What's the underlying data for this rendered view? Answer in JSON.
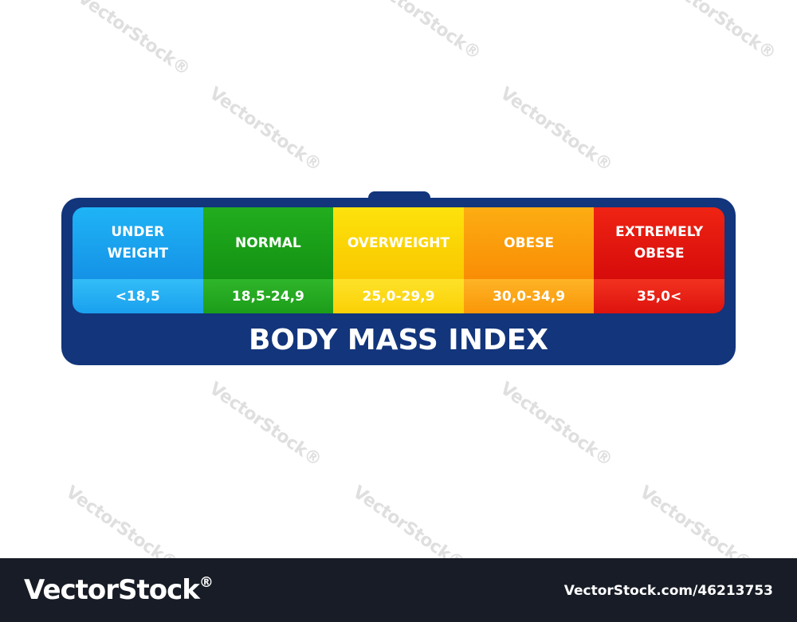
{
  "watermark": "VectorStock®",
  "colors": {
    "frame": "#12357c",
    "footer": "#171c26",
    "underweight": "#1ea6f0",
    "normal": "#1aa31a",
    "overweight": "#fbd305",
    "obese": "#fb9a08",
    "extremely_obese": "#e3150f"
  },
  "categories": [
    {
      "label_1": "UNDER",
      "label_2": "WEIGHT",
      "range": "<18,5"
    },
    {
      "label_1": "NORMAL",
      "label_2": "",
      "range": "18,5-24,9"
    },
    {
      "label_1": "OVERWEIGHT",
      "label_2": "",
      "range": "25,0-29,9"
    },
    {
      "label_1": "OBESE",
      "label_2": "",
      "range": "30,0-34,9"
    },
    {
      "label_1": "EXTREMELY",
      "label_2": "OBESE",
      "range": "35,0<"
    }
  ],
  "title": "BODY MASS INDEX",
  "footer": {
    "logo": "VectorStock",
    "registered": "®",
    "image_id": "VectorStock.com/46213753"
  }
}
